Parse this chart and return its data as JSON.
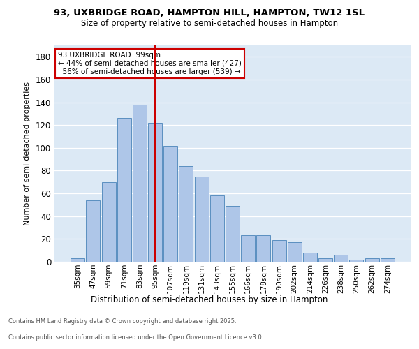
{
  "title_line1": "93, UXBRIDGE ROAD, HAMPTON HILL, HAMPTON, TW12 1SL",
  "title_line2": "Size of property relative to semi-detached houses in Hampton",
  "xlabel": "Distribution of semi-detached houses by size in Hampton",
  "ylabel": "Number of semi-detached properties",
  "categories": [
    "35sqm",
    "47sqm",
    "59sqm",
    "71sqm",
    "83sqm",
    "95sqm",
    "107sqm",
    "119sqm",
    "131sqm",
    "143sqm",
    "155sqm",
    "166sqm",
    "178sqm",
    "190sqm",
    "202sqm",
    "214sqm",
    "226sqm",
    "238sqm",
    "250sqm",
    "262sqm",
    "274sqm"
  ],
  "values": [
    3,
    54,
    70,
    126,
    138,
    122,
    102,
    84,
    75,
    58,
    49,
    23,
    23,
    19,
    17,
    8,
    3,
    6,
    2,
    3,
    3
  ],
  "bar_color": "#aec6e8",
  "bar_edge_color": "#5a8fc0",
  "property_bin_index": 5,
  "vline_color": "#cc0000",
  "annotation_text": "93 UXBRIDGE ROAD: 99sqm\n← 44% of semi-detached houses are smaller (427)\n  56% of semi-detached houses are larger (539) →",
  "annotation_box_color": "#ffffff",
  "annotation_box_edge": "#cc0000",
  "ylim": [
    0,
    190
  ],
  "yticks": [
    0,
    20,
    40,
    60,
    80,
    100,
    120,
    140,
    160,
    180
  ],
  "footer_line1": "Contains HM Land Registry data © Crown copyright and database right 2025.",
  "footer_line2": "Contains public sector information licensed under the Open Government Licence v3.0.",
  "plot_bg_color": "#dce9f5",
  "fig_bg_color": "#ffffff",
  "grid_color": "#ffffff"
}
